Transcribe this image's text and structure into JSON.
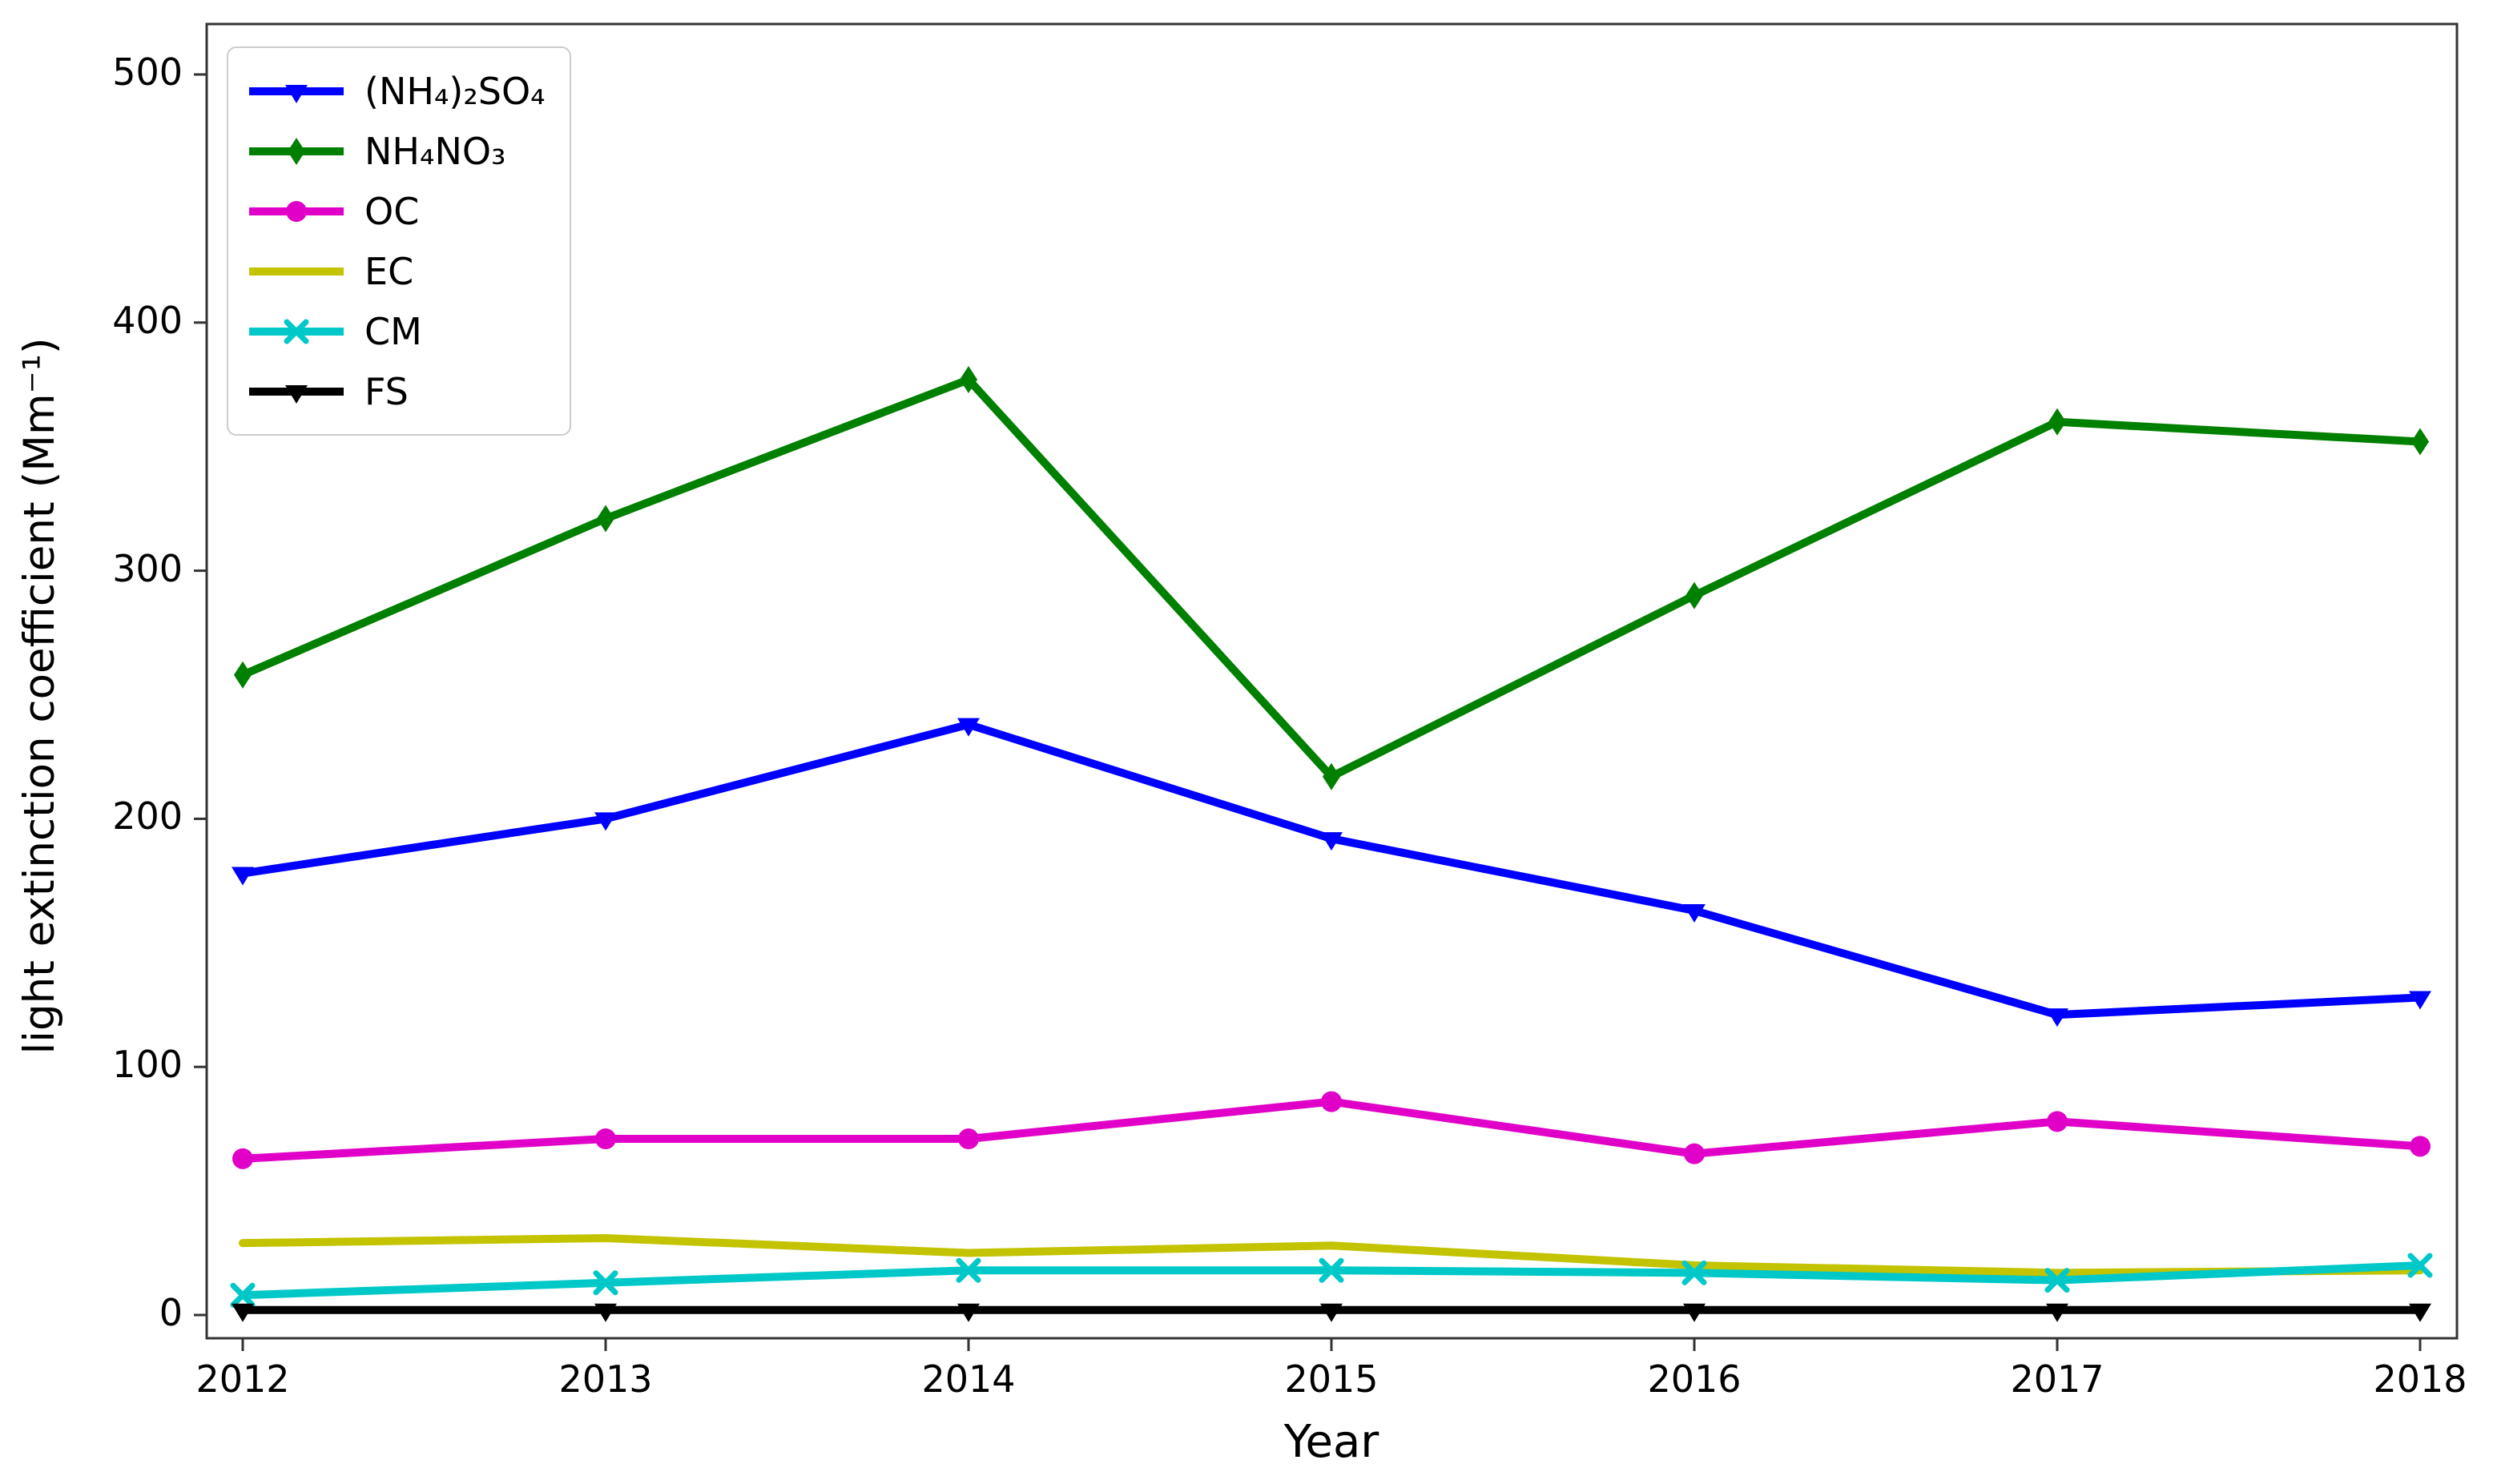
{
  "chart_data": {
    "type": "line",
    "title": "",
    "xlabel": "Year",
    "ylabel": "light extinction coefficient (Mm⁻¹)",
    "x": [
      2012,
      2013,
      2014,
      2015,
      2016,
      2017,
      2018
    ],
    "xlim": [
      2012,
      2018
    ],
    "ylim": [
      0,
      500
    ],
    "yticks": [
      0,
      100,
      200,
      300,
      400,
      500
    ],
    "grid": false,
    "legend_position": "upper left",
    "series": [
      {
        "name": "(NH₄)₂SO₄",
        "color": "#0000ff",
        "marker": "triangle-down",
        "values": [
          178,
          200,
          238,
          192,
          163,
          121,
          128
        ]
      },
      {
        "name": "NH₄NO₃",
        "color": "#008000",
        "marker": "diamond",
        "values": [
          258,
          321,
          377,
          217,
          290,
          360,
          352
        ]
      },
      {
        "name": "OC",
        "color": "#e000c8",
        "marker": "circle",
        "values": [
          63,
          71,
          71,
          86,
          65,
          78,
          68
        ]
      },
      {
        "name": "EC",
        "color": "#c3c300",
        "marker": "none",
        "values": [
          29,
          31,
          25,
          28,
          20,
          17,
          18
        ]
      },
      {
        "name": "CM",
        "color": "#00c8c8",
        "marker": "x",
        "values": [
          8,
          13,
          18,
          18,
          17,
          14,
          20
        ]
      },
      {
        "name": "FS",
        "color": "#000000",
        "marker": "triangle-down",
        "values": [
          2,
          2,
          2,
          2,
          2,
          2,
          2
        ]
      }
    ]
  }
}
